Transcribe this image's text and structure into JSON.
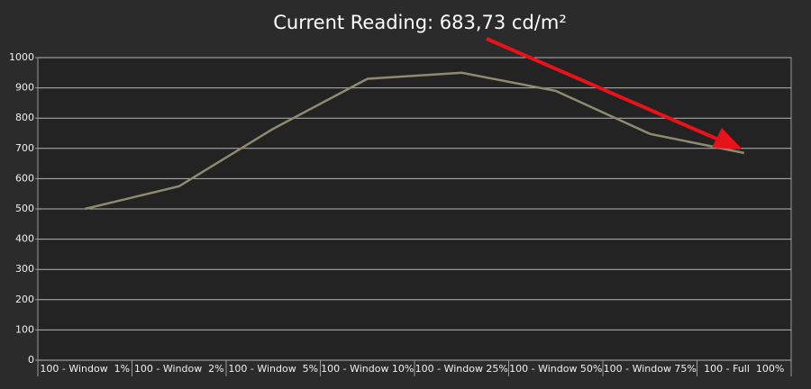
{
  "chart_data": {
    "type": "line",
    "title": "Current Reading: 683,73 cd/m²",
    "categories": [
      "100 - Window  1%",
      "100 - Window  2%",
      "100 - Window  5%",
      "100 - Window 10%",
      "100 - Window 25%",
      "100 - Window 50%",
      "100 - Window 75%",
      "100 - Full  100%"
    ],
    "values": [
      500,
      575,
      765,
      930,
      950,
      890,
      748,
      685
    ],
    "color": "#8e8b70",
    "ylim": [
      0,
      1000
    ],
    "yticks": [
      0,
      100,
      200,
      300,
      400,
      500,
      600,
      700,
      800,
      900,
      1000
    ],
    "grid": true
  }
}
